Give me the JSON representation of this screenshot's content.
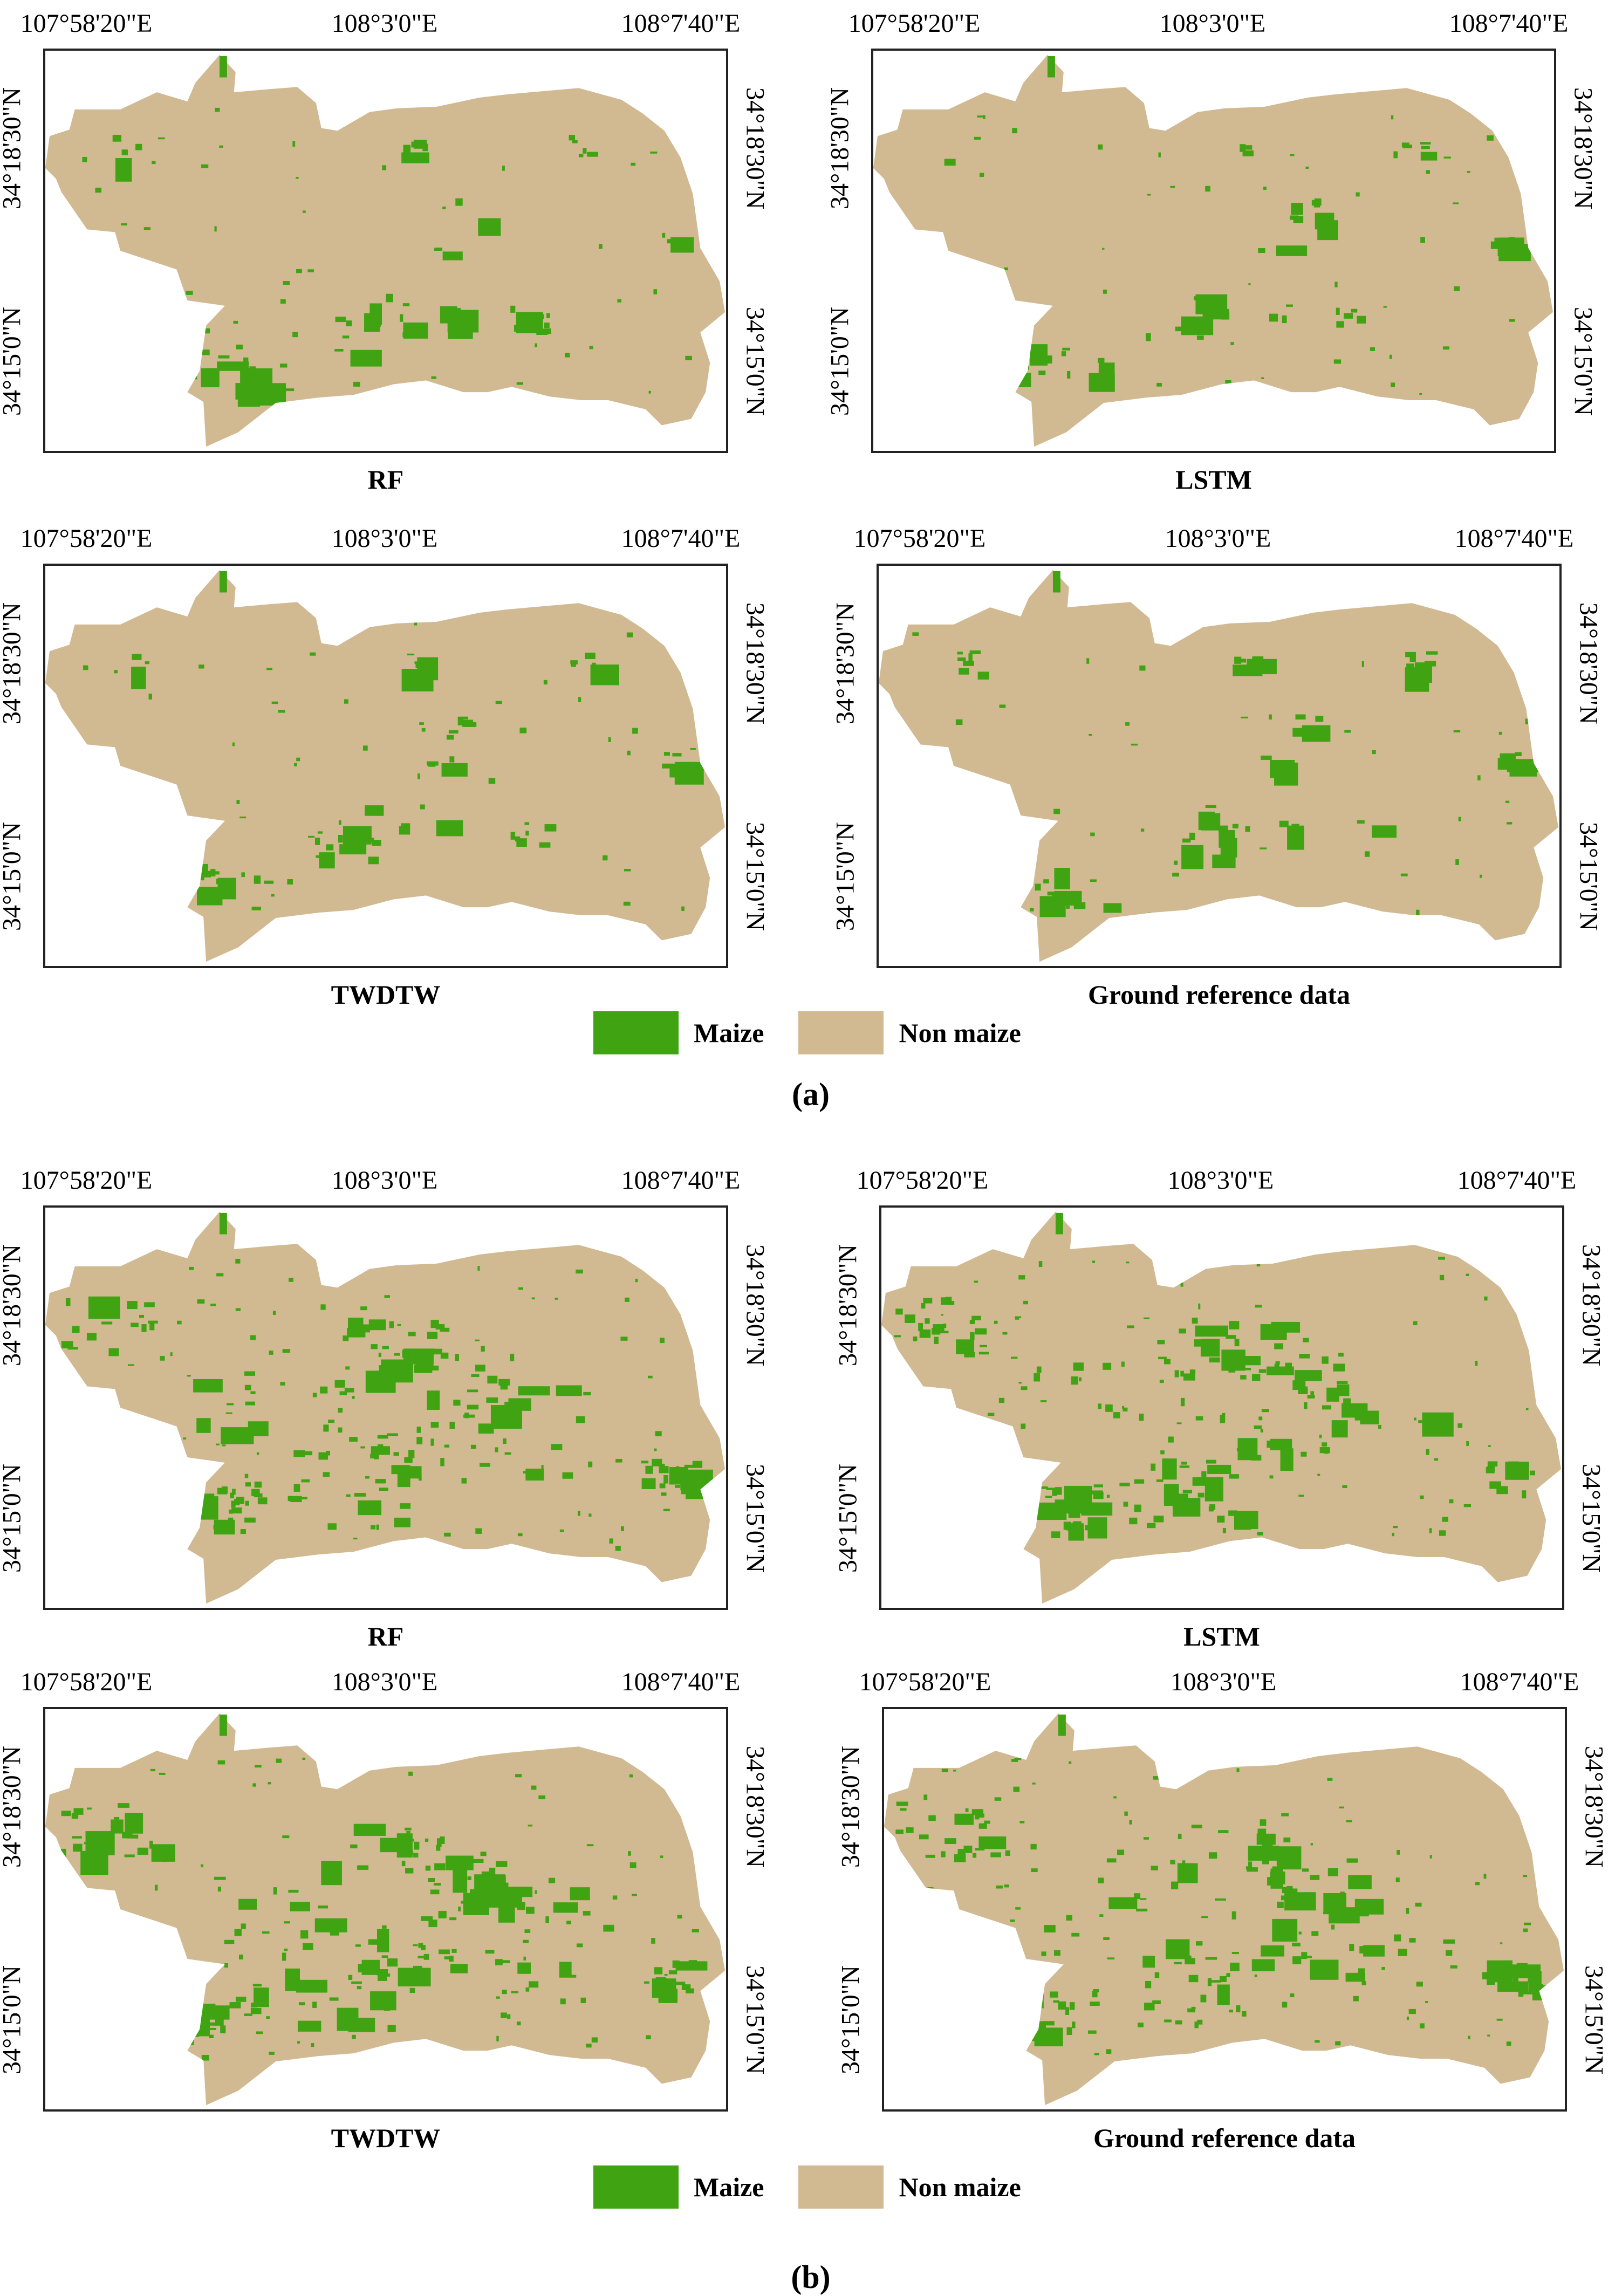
{
  "colors": {
    "maize": "#3fa312",
    "non_maize": "#d1b992",
    "frame": "#222222"
  },
  "axis_labels": {
    "lon": [
      "107°58'20\"E",
      "108°3'0\"E",
      "108°7'40\"E"
    ],
    "lat_top": "34°18'30\"N",
    "lat_bottom": "34°15'0\"N"
  },
  "figures": [
    {
      "label": "(a)",
      "panels": [
        {
          "title": "RF"
        },
        {
          "title": "LSTM"
        },
        {
          "title": "TWDTW"
        },
        {
          "title": "Ground reference data"
        }
      ],
      "legend": [
        {
          "label": "Maize",
          "color": "#3fa312"
        },
        {
          "label": "Non maize",
          "color": "#d1b992"
        }
      ]
    },
    {
      "label": "(b)",
      "panels": [
        {
          "title": "RF"
        },
        {
          "title": "LSTM"
        },
        {
          "title": "TWDTW"
        },
        {
          "title": "Ground reference data"
        }
      ],
      "legend": [
        {
          "label": "Maize",
          "color": "#3fa312"
        },
        {
          "label": "Non maize",
          "color": "#d1b992"
        }
      ]
    }
  ]
}
